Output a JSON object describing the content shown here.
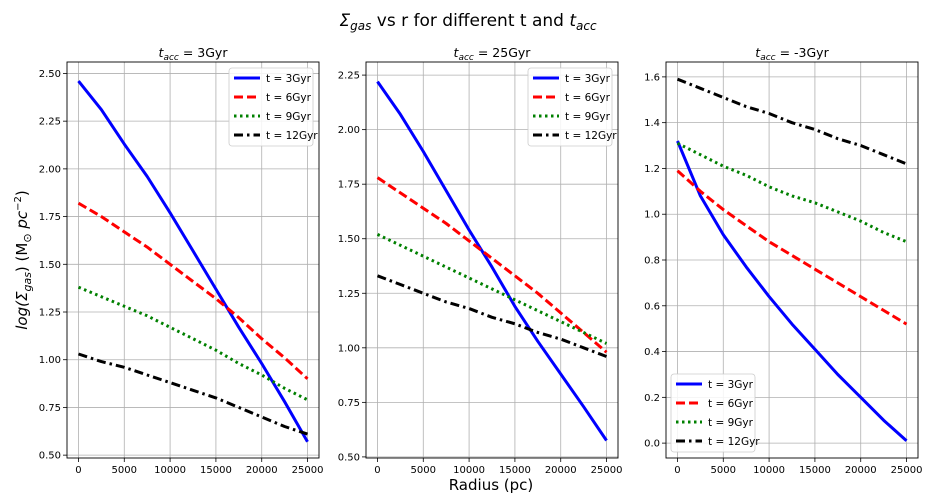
{
  "figure": {
    "suptitle_main": "Σ",
    "suptitle_sub": "gas",
    "suptitle_mid": " vs r for different t and ",
    "suptitle_t": "t",
    "suptitle_tsub": "acc",
    "xlabel": "Radius (pc)",
    "ylabel_prefix": "log(Σ",
    "ylabel_sub": "gas",
    "ylabel_mid": ") (M",
    "ylabel_sun": "⊙",
    "ylabel_pc": " pc",
    "ylabel_exp": "−2",
    "ylabel_end": ")"
  },
  "colors": {
    "t3": "#0000ff",
    "t6": "#ff0000",
    "t9": "#008000",
    "t12": "#000000",
    "grid": "#b0b0b0"
  },
  "chart_data": [
    {
      "type": "line",
      "title_t": "t",
      "title_sub": "acc",
      "title_rest": " = 3Gyr",
      "xlim": [
        -1250,
        26250
      ],
      "ylim": [
        0.485,
        2.56
      ],
      "xticks": [
        0,
        5000,
        10000,
        15000,
        20000,
        25000
      ],
      "yticks": [
        0.5,
        0.75,
        1.0,
        1.25,
        1.5,
        1.75,
        2.0,
        2.25,
        2.5
      ],
      "yticks_labels": [
        "0.50",
        "0.75",
        "1.00",
        "1.25",
        "1.50",
        "1.75",
        "2.00",
        "2.25",
        "2.50"
      ],
      "grid": true,
      "legend_loc": "upper right",
      "x": [
        0,
        2500,
        5000,
        7500,
        10000,
        12500,
        15000,
        17500,
        20000,
        22500,
        25000
      ],
      "series": [
        {
          "name": "t = 3Gyr",
          "key": "t3",
          "style": "solid",
          "values": [
            2.46,
            2.31,
            2.13,
            1.96,
            1.77,
            1.57,
            1.37,
            1.17,
            0.98,
            0.78,
            0.57
          ]
        },
        {
          "name": "t = 6Gyr",
          "key": "t6",
          "style": "dashed",
          "values": [
            1.82,
            1.75,
            1.67,
            1.59,
            1.5,
            1.41,
            1.32,
            1.22,
            1.11,
            1.01,
            0.9
          ]
        },
        {
          "name": "t = 9Gyr",
          "key": "t9",
          "style": "dotted",
          "values": [
            1.38,
            1.33,
            1.28,
            1.23,
            1.17,
            1.11,
            1.05,
            0.98,
            0.92,
            0.85,
            0.79
          ]
        },
        {
          "name": "t = 12Gyr",
          "key": "t12",
          "style": "dashdot",
          "values": [
            1.03,
            0.99,
            0.96,
            0.92,
            0.88,
            0.84,
            0.8,
            0.75,
            0.7,
            0.65,
            0.61
          ]
        }
      ]
    },
    {
      "type": "line",
      "title_t": "t",
      "title_sub": "acc",
      "title_rest": " = 25Gyr",
      "xlim": [
        -1250,
        26250
      ],
      "ylim": [
        0.495,
        2.31
      ],
      "xticks": [
        0,
        5000,
        10000,
        15000,
        20000,
        25000
      ],
      "yticks": [
        0.5,
        0.75,
        1.0,
        1.25,
        1.5,
        1.75,
        2.0,
        2.25
      ],
      "yticks_labels": [
        "0.50",
        "0.75",
        "1.00",
        "1.25",
        "1.50",
        "1.75",
        "2.00",
        "2.25"
      ],
      "grid": true,
      "legend_loc": "upper right",
      "x": [
        0,
        2500,
        5000,
        7500,
        10000,
        12500,
        15000,
        17500,
        20000,
        22500,
        25000
      ],
      "series": [
        {
          "name": "t = 3Gyr",
          "key": "t3",
          "style": "solid",
          "values": [
            2.22,
            2.07,
            1.9,
            1.72,
            1.54,
            1.37,
            1.19,
            1.03,
            0.88,
            0.73,
            0.575
          ]
        },
        {
          "name": "t = 6Gyr",
          "key": "t6",
          "style": "dashed",
          "values": [
            1.78,
            1.71,
            1.64,
            1.57,
            1.49,
            1.41,
            1.33,
            1.25,
            1.16,
            1.07,
            0.98
          ]
        },
        {
          "name": "t = 9Gyr",
          "key": "t9",
          "style": "dotted",
          "values": [
            1.52,
            1.47,
            1.42,
            1.37,
            1.32,
            1.27,
            1.22,
            1.17,
            1.12,
            1.07,
            1.02
          ]
        },
        {
          "name": "t = 12Gyr",
          "key": "t12",
          "style": "dashdot",
          "values": [
            1.33,
            1.29,
            1.25,
            1.21,
            1.18,
            1.14,
            1.11,
            1.07,
            1.04,
            1.0,
            0.96
          ]
        }
      ]
    },
    {
      "type": "line",
      "title_t": "t",
      "title_sub": "acc",
      "title_rest": " = -3Gyr",
      "xlim": [
        -1250,
        26250
      ],
      "ylim": [
        -0.065,
        1.665
      ],
      "xticks": [
        0,
        5000,
        10000,
        15000,
        20000,
        25000
      ],
      "yticks": [
        0.0,
        0.2,
        0.4,
        0.6,
        0.8,
        1.0,
        1.2,
        1.4,
        1.6
      ],
      "yticks_labels": [
        "0.0",
        "0.2",
        "0.4",
        "0.6",
        "0.8",
        "1.0",
        "1.2",
        "1.4",
        "1.6"
      ],
      "grid": true,
      "legend_loc": "lower left",
      "x": [
        0,
        2500,
        5000,
        7500,
        10000,
        12500,
        15000,
        17500,
        20000,
        22500,
        25000
      ],
      "series": [
        {
          "name": "t = 3Gyr",
          "key": "t3",
          "style": "solid",
          "values": [
            1.32,
            1.08,
            0.91,
            0.77,
            0.64,
            0.52,
            0.41,
            0.3,
            0.2,
            0.1,
            0.01
          ]
        },
        {
          "name": "t = 6Gyr",
          "key": "t6",
          "style": "dashed",
          "values": [
            1.19,
            1.1,
            1.02,
            0.95,
            0.88,
            0.82,
            0.76,
            0.7,
            0.64,
            0.58,
            0.52
          ]
        },
        {
          "name": "t = 9Gyr",
          "key": "t9",
          "style": "dotted",
          "values": [
            1.31,
            1.26,
            1.21,
            1.17,
            1.12,
            1.08,
            1.05,
            1.01,
            0.97,
            0.92,
            0.88
          ]
        },
        {
          "name": "t = 12Gyr",
          "key": "t12",
          "style": "dashdot",
          "values": [
            1.59,
            1.55,
            1.51,
            1.47,
            1.44,
            1.4,
            1.37,
            1.33,
            1.3,
            1.26,
            1.22
          ]
        }
      ]
    }
  ]
}
